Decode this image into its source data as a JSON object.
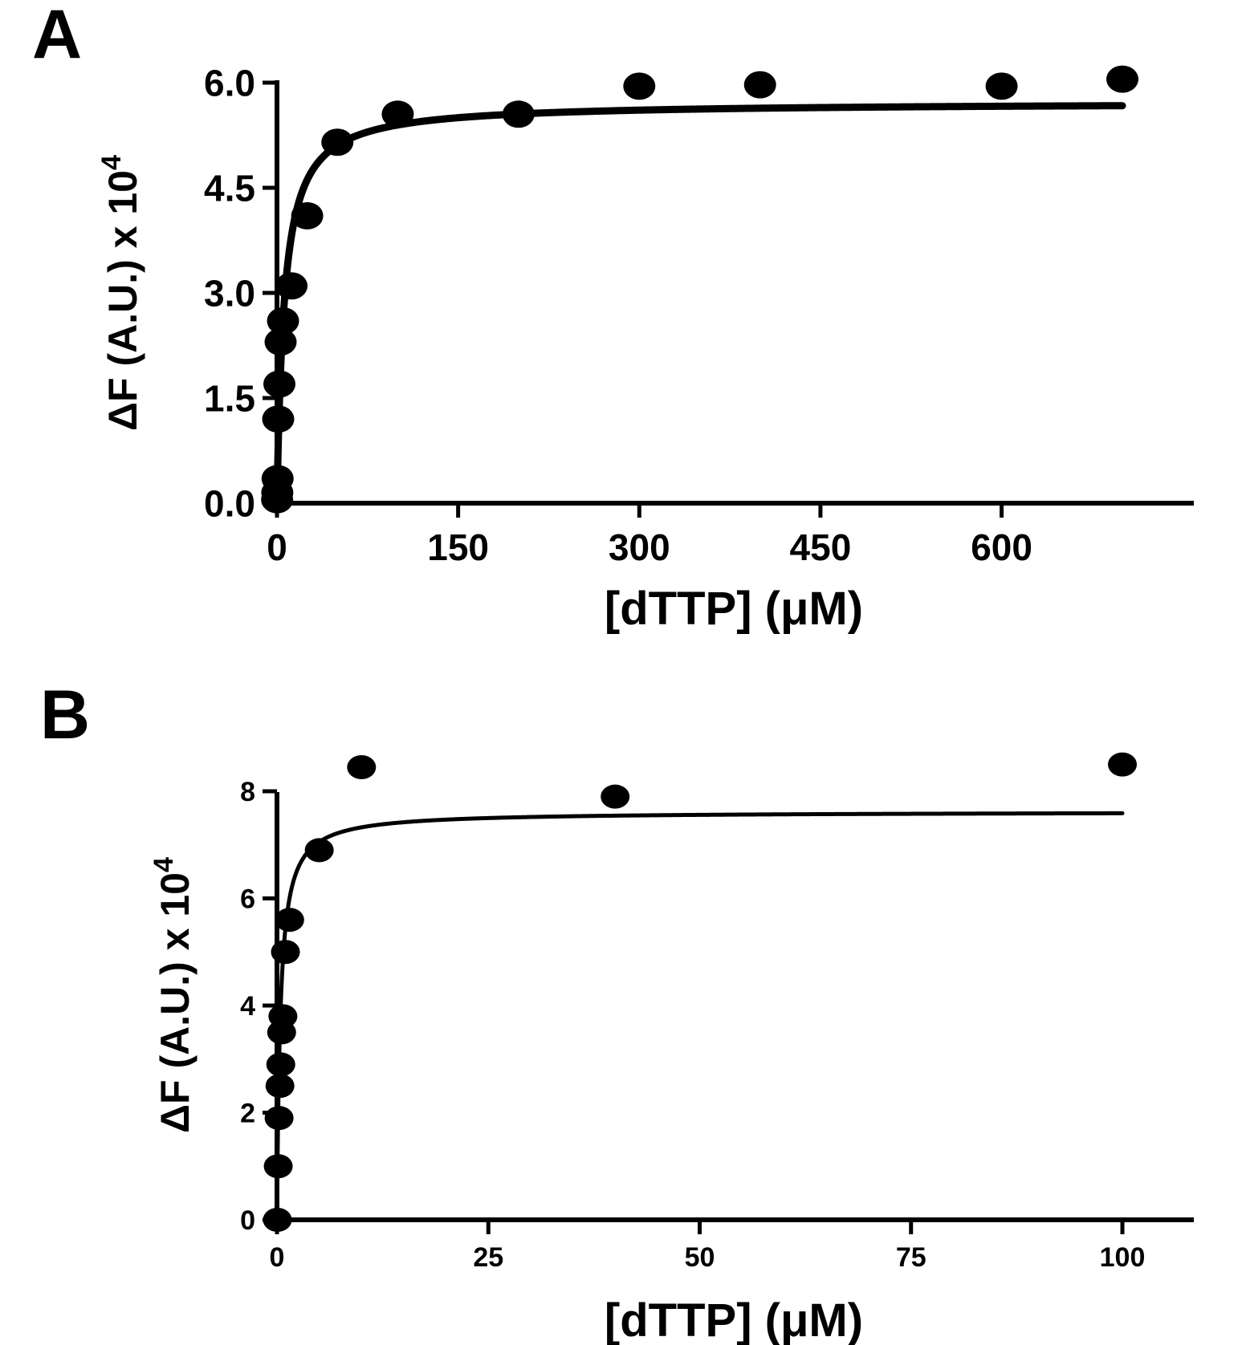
{
  "chart_data": [
    {
      "panel_label": "A",
      "type": "scatter",
      "xlabel": "[dTTP] (μM)",
      "ylabel": "ΔF (A.U.) x 10",
      "ylabel_superscript": "4",
      "xlim": [
        0,
        700
      ],
      "ylim": [
        0,
        6.0
      ],
      "x_ticks": [
        0,
        150,
        300,
        450,
        600
      ],
      "x_tick_labels": [
        "0",
        "150",
        "300",
        "450",
        "600"
      ],
      "y_ticks": [
        0,
        1.5,
        3.0,
        4.5,
        6.0
      ],
      "y_tick_labels": [
        "0.0",
        "1.5",
        "3.0",
        "4.5",
        "6.0"
      ],
      "grid": false,
      "legend": "none",
      "points": [
        {
          "x": 0.1,
          "y": 0.05
        },
        {
          "x": 0.25,
          "y": 0.15
        },
        {
          "x": 0.5,
          "y": 0.35
        },
        {
          "x": 1,
          "y": 1.2
        },
        {
          "x": 2,
          "y": 1.7
        },
        {
          "x": 3,
          "y": 2.3
        },
        {
          "x": 5,
          "y": 2.6
        },
        {
          "x": 12,
          "y": 3.1
        },
        {
          "x": 25,
          "y": 4.1
        },
        {
          "x": 50,
          "y": 5.15
        },
        {
          "x": 100,
          "y": 5.55
        },
        {
          "x": 200,
          "y": 5.55
        },
        {
          "x": 300,
          "y": 5.95
        },
        {
          "x": 400,
          "y": 5.97
        },
        {
          "x": 600,
          "y": 5.95
        },
        {
          "x": 700,
          "y": 6.05
        }
      ],
      "fit": {
        "model": "hyperbolic",
        "Bmax": 5.72,
        "Kd": 6
      }
    },
    {
      "panel_label": "B",
      "type": "scatter",
      "xlabel": "[dTTP] (μM)",
      "ylabel": "ΔF (A.U.) x 10",
      "ylabel_superscript": "4",
      "xlim": [
        0,
        100
      ],
      "ylim": [
        0,
        9
      ],
      "x_ticks": [
        0,
        25,
        50,
        75,
        100
      ],
      "x_tick_labels": [
        "0",
        "25",
        "50",
        "75",
        "100"
      ],
      "y_ticks": [
        0,
        2,
        4,
        6,
        8
      ],
      "y_tick_labels": [
        "0",
        "2",
        "4",
        "6",
        "8"
      ],
      "grid": false,
      "legend": "none",
      "points": [
        {
          "x": 0.05,
          "y": 0.0
        },
        {
          "x": 0.15,
          "y": 1.0
        },
        {
          "x": 0.25,
          "y": 1.9
        },
        {
          "x": 0.35,
          "y": 2.5
        },
        {
          "x": 0.45,
          "y": 2.9
        },
        {
          "x": 0.55,
          "y": 3.5
        },
        {
          "x": 0.7,
          "y": 3.8
        },
        {
          "x": 1.0,
          "y": 5.0
        },
        {
          "x": 1.5,
          "y": 5.6
        },
        {
          "x": 5,
          "y": 6.9
        },
        {
          "x": 10,
          "y": 8.45
        },
        {
          "x": 40,
          "y": 7.9
        },
        {
          "x": 100,
          "y": 8.5
        }
      ],
      "fit": {
        "model": "hyperbolic",
        "Bmax": 7.62,
        "Kd": 0.4
      }
    }
  ]
}
